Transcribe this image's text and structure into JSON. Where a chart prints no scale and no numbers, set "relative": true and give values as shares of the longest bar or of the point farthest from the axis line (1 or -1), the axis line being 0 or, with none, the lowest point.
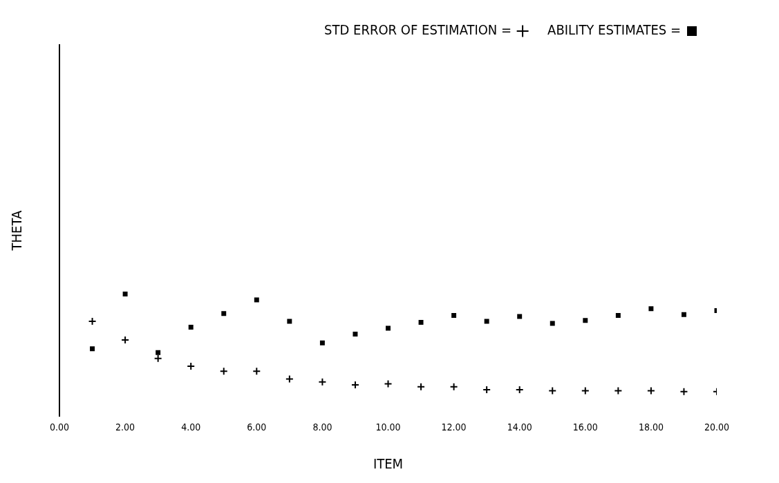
{
  "chart_data": {
    "type": "scatter",
    "xlabel": "ITEM",
    "ylabel": "THETA",
    "relative": true,
    "grid": false,
    "legend": "top right",
    "x": [
      1,
      2,
      3,
      4,
      5,
      6,
      7,
      8,
      9,
      10,
      11,
      12,
      13,
      14,
      15,
      16,
      17,
      18,
      19,
      20
    ],
    "xlim": [
      0,
      20
    ],
    "xticks": [
      {
        "value": 0,
        "label": "0.00"
      },
      {
        "value": 2,
        "label": "2.00"
      },
      {
        "value": 4,
        "label": "4.00"
      },
      {
        "value": 6,
        "label": "6.00"
      },
      {
        "value": 8,
        "label": "8.00"
      },
      {
        "value": 10,
        "label": "10.00"
      },
      {
        "value": 12,
        "label": "12.00"
      },
      {
        "value": 14,
        "label": "14.00"
      },
      {
        "value": 16,
        "label": "16.00"
      },
      {
        "value": 18,
        "label": "18.00"
      },
      {
        "value": 20,
        "label": "20.00"
      }
    ],
    "series": [
      {
        "name": "STD ERROR OF ESTIMATION =",
        "color": "#000000",
        "marker": "cross",
        "values": [
          0.72,
          0.53,
          0.34,
          0.26,
          0.21,
          0.21,
          0.13,
          0.1,
          0.07,
          0.08,
          0.05,
          0.05,
          0.02,
          0.02,
          0.01,
          0.01,
          0.01,
          0.01,
          0,
          0
        ]
      },
      {
        "name": "ABILITY ESTIMATES =",
        "color": "#000000",
        "marker": "square",
        "values": [
          0.44,
          1,
          0.4,
          0.66,
          0.8,
          0.94,
          0.72,
          0.5,
          0.59,
          0.65,
          0.71,
          0.78,
          0.72,
          0.77,
          0.7,
          0.73,
          0.78,
          0.85,
          0.79,
          0.83
        ]
      }
    ]
  }
}
